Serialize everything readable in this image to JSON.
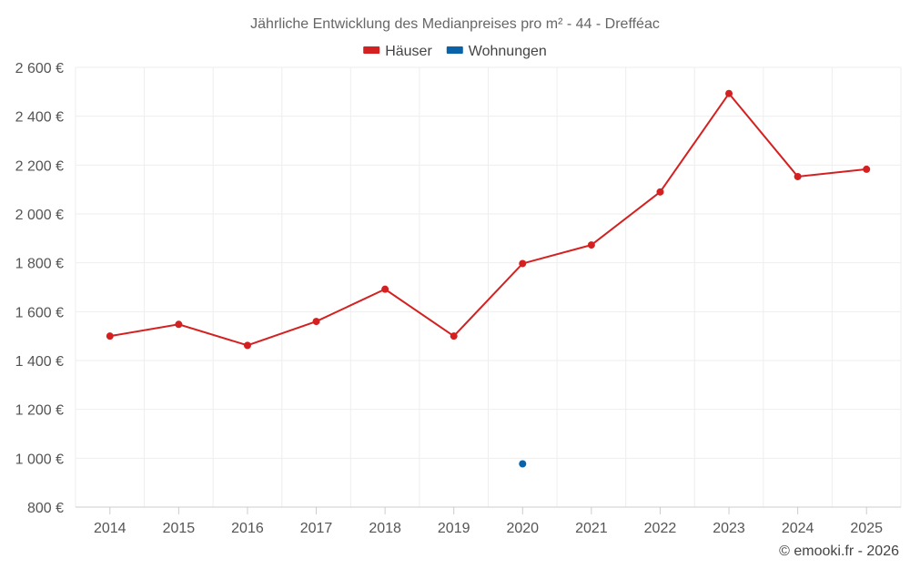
{
  "chart_data": {
    "type": "line",
    "title": "Jährliche Entwicklung des Medianpreises pro m² - 44 - Drefféac",
    "categories": [
      "2014",
      "2015",
      "2016",
      "2017",
      "2018",
      "2019",
      "2020",
      "2021",
      "2022",
      "2023",
      "2024",
      "2025"
    ],
    "series": [
      {
        "name": "Häuser",
        "color": "#d42020",
        "values": [
          1500,
          1548,
          1462,
          1560,
          1692,
          1500,
          1797,
          1873,
          2090,
          2493,
          2153,
          2183
        ]
      },
      {
        "name": "Wohnungen",
        "color": "#0a63a8",
        "values": [
          null,
          null,
          null,
          null,
          null,
          null,
          977,
          null,
          null,
          null,
          null,
          null
        ]
      }
    ],
    "y_ticks": [
      800,
      1000,
      1200,
      1400,
      1600,
      1800,
      2000,
      2200,
      2400,
      2600
    ],
    "y_tick_labels": [
      "800 €",
      "1 000 €",
      "1 200 €",
      "1 400 €",
      "1 600 €",
      "1 800 €",
      "2 000 €",
      "2 200 €",
      "2 400 €",
      "2 600 €"
    ],
    "ylim": [
      800,
      2600
    ],
    "xlabel": "",
    "ylabel": "",
    "legend_position": "top-center",
    "grid": true
  },
  "credit": "© emooki.fr - 2026"
}
